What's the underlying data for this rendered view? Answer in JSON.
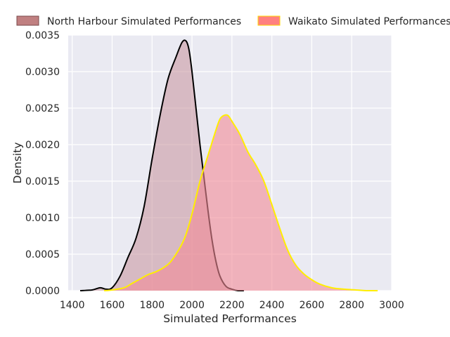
{
  "chart_data": {
    "type": "area",
    "xlabel": "Simulated Performances",
    "ylabel": "Density",
    "xlim": [
      1380,
      3000
    ],
    "ylim": [
      0,
      0.0035
    ],
    "xticks": [
      1400,
      1600,
      1800,
      2000,
      2200,
      2400,
      2600,
      2800,
      3000
    ],
    "xtick_labels": [
      "1400",
      "1600",
      "1800",
      "2000",
      "2200",
      "2400",
      "2600",
      "2800",
      "3000"
    ],
    "yticks": [
      0,
      0.0005,
      0.001,
      0.0015,
      0.002,
      0.0025,
      0.003,
      0.0035
    ],
    "ytick_labels": [
      "0.0000",
      "0.0005",
      "0.0010",
      "0.0015",
      "0.0020",
      "0.0025",
      "0.0030",
      "0.0035"
    ],
    "grid": true,
    "legend_position": "top",
    "background": "#eaeaf2",
    "series": [
      {
        "name": "North Harbour Simulated Performances",
        "legend_fill": "#c08081",
        "legend_edge": "#7a4a4b",
        "fill": "#c48a94",
        "fill_opacity": 0.5,
        "line": "#000000",
        "x": [
          1440,
          1500,
          1540,
          1570,
          1600,
          1640,
          1680,
          1720,
          1760,
          1800,
          1840,
          1880,
          1920,
          1950,
          1970,
          1985,
          2000,
          2020,
          2040,
          2060,
          2080,
          2100,
          2120,
          2140,
          2170,
          2200,
          2230,
          2260
        ],
        "y": [
          0.0,
          1e-05,
          4e-05,
          2e-05,
          4e-05,
          0.0002,
          0.00046,
          0.00072,
          0.00115,
          0.0018,
          0.0024,
          0.0029,
          0.0032,
          0.0034,
          0.00342,
          0.0033,
          0.003,
          0.0025,
          0.002,
          0.00155,
          0.0011,
          0.0007,
          0.0004,
          0.0002,
          6e-05,
          2e-05,
          0.0,
          0.0
        ]
      },
      {
        "name": "Waikato Simulated Performances",
        "legend_fill": "#ff8080",
        "legend_edge": "#ffd700",
        "fill": "#f28b96",
        "fill_opacity": 0.6,
        "line": "#ffee00",
        "x": [
          1560,
          1600,
          1660,
          1700,
          1740,
          1780,
          1820,
          1860,
          1900,
          1960,
          2000,
          2040,
          2080,
          2120,
          2140,
          2160,
          2180,
          2200,
          2240,
          2280,
          2320,
          2360,
          2400,
          2440,
          2480,
          2520,
          2560,
          2600,
          2640,
          2700,
          2760,
          2820,
          2880,
          2930
        ],
        "y": [
          0.0,
          1e-05,
          4e-05,
          0.0001,
          0.00016,
          0.00022,
          0.00026,
          0.00032,
          0.00042,
          0.0007,
          0.00105,
          0.0015,
          0.00185,
          0.0022,
          0.00235,
          0.0024,
          0.0024,
          0.00232,
          0.00214,
          0.0019,
          0.00172,
          0.0015,
          0.00118,
          0.00085,
          0.00055,
          0.00035,
          0.00023,
          0.00015,
          9e-05,
          4e-05,
          2e-05,
          1e-05,
          0.0,
          0.0
        ]
      }
    ]
  }
}
